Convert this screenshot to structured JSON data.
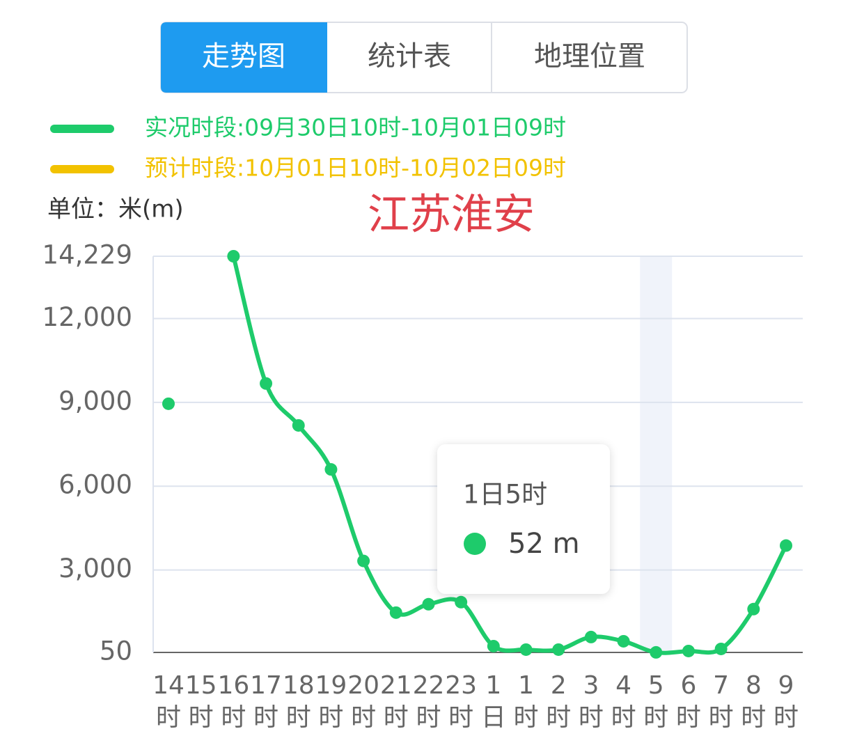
{
  "tabs": [
    "走势图",
    "统计表",
    "地理位置"
  ],
  "chart_data": {
    "type": "line",
    "title": "江苏淮安",
    "unit_label": "单位：米(m)",
    "categories": [
      "14时",
      "15时",
      "16时",
      "17时",
      "18时",
      "19时",
      "20时",
      "21时",
      "22时",
      "23时",
      "1日",
      "1时",
      "2时",
      "3时",
      "4时",
      "5时",
      "6时",
      "7时",
      "8时",
      "9时"
    ],
    "series": [
      {
        "name": "实况时段:09月30日10时-10月01日09时",
        "color": "#1ecb6b",
        "values": [
          8950,
          null,
          14229,
          9675,
          8175,
          6600,
          3325,
          1475,
          1775,
          1850,
          275,
          150,
          150,
          600,
          450,
          52,
          100,
          175,
          1600,
          3875
        ]
      },
      {
        "name": "预计时段:10月01日10时-10月02日09时",
        "color": "#f2c200",
        "values": [
          null,
          null,
          null,
          null,
          null,
          null,
          null,
          null,
          null,
          null,
          null,
          null,
          null,
          null,
          null,
          null,
          null,
          null,
          null,
          null
        ]
      }
    ],
    "ylim": [
      50,
      14229
    ],
    "yticks": [
      50,
      {
        "value": 3000,
        "label": "3,000"
      },
      {
        "value": 6000,
        "label": "6,000"
      },
      {
        "value": 9000,
        "label": "9,000"
      },
      {
        "value": 12000,
        "label": "12,000"
      },
      {
        "value": 14229,
        "label": "14,229"
      }
    ],
    "grid": true,
    "tooltip": {
      "category": "5时",
      "title": "1日5时",
      "text": "52 m"
    }
  }
}
